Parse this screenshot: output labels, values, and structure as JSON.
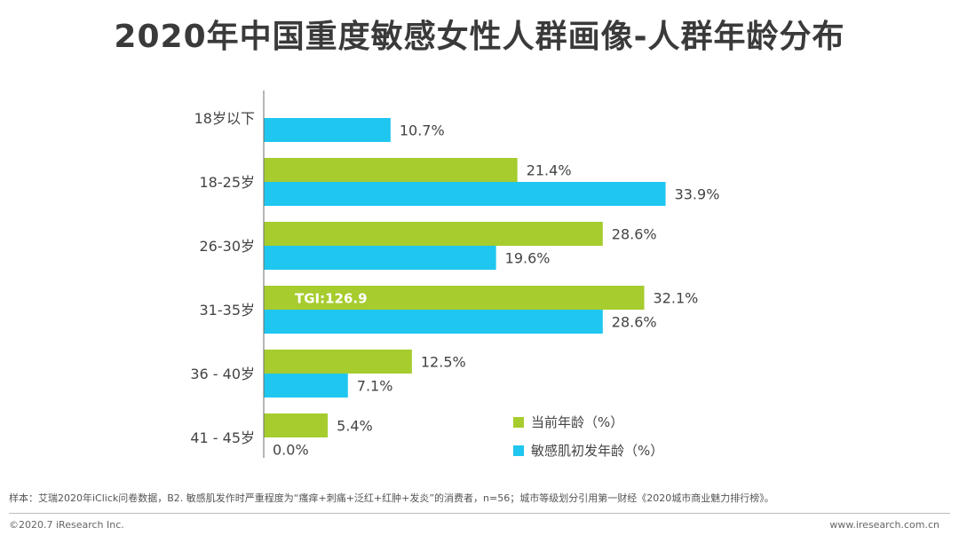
{
  "chart_data": {
    "type": "bar",
    "orientation": "horizontal",
    "title": "2020年中国重度敏感女性人群画像-人群年龄分布",
    "categories": [
      "18岁以下",
      "18-25岁",
      "26-30岁",
      "31-35岁",
      "36 - 40岁",
      "41 - 45岁"
    ],
    "series": [
      {
        "name": "当前年龄（%）",
        "color": "#a6cc2e",
        "values": [
          null,
          21.4,
          28.6,
          32.1,
          12.5,
          5.4
        ],
        "labels": [
          "",
          "21.4%",
          "28.6%",
          "32.1%",
          "12.5%",
          "5.4%"
        ]
      },
      {
        "name": "敏感肌初发年龄（%）",
        "color": "#1fc6ef",
        "values": [
          10.7,
          33.9,
          19.6,
          28.6,
          7.1,
          0.0
        ],
        "labels": [
          "10.7%",
          "33.9%",
          "19.6%",
          "28.6%",
          "7.1%",
          "0.0%"
        ]
      }
    ],
    "xlim": [
      0,
      40
    ],
    "annotations": [
      {
        "text": "TGI:126.9",
        "category": "31-35岁",
        "series": "当前年龄（%）"
      }
    ],
    "legend_position": "bottom-right"
  },
  "footer": {
    "note": "样本：艾瑞2020年iClick问卷数据，B2. 敏感肌发作时严重程度为“瘙痒+刺痛+泛红+红肿+发炎”的消费者，n=56；城市等级划分引用第一财经《2020城市商业魅力排行榜》。",
    "copyright": "©2020.7 iResearch Inc.",
    "website": "www.iresearch.com.cn"
  }
}
